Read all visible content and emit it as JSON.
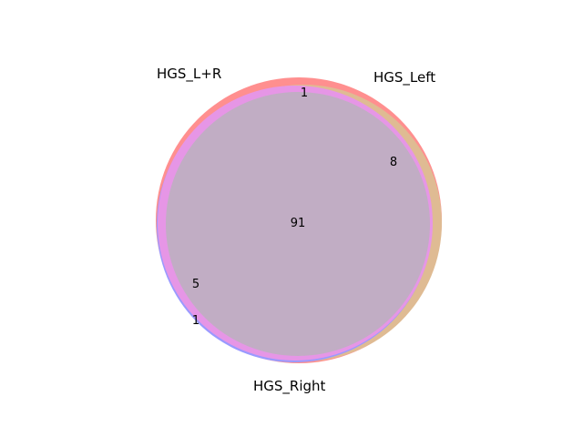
{
  "diagram": {
    "type": "venn3",
    "sets": [
      {
        "name": "HGS_L+R",
        "color": "#ff8f8f"
      },
      {
        "name": "HGS_Left",
        "color": "#dfbb93"
      },
      {
        "name": "HGS_Right",
        "color": "#9a9aff"
      }
    ],
    "regions": [
      {
        "sets": [
          "HGS_L+R",
          "HGS_Left"
        ],
        "count": "1"
      },
      {
        "sets": [
          "HGS_Left"
        ],
        "count": "8"
      },
      {
        "sets": [
          "HGS_L+R",
          "HGS_Left",
          "HGS_Right"
        ],
        "count": "91"
      },
      {
        "sets": [
          "HGS_L+R",
          "HGS_Right"
        ],
        "count": "5"
      },
      {
        "sets": [
          "HGS_Right"
        ],
        "count": "1"
      }
    ],
    "overlap_colors": {
      "lr_right": "#e696e6",
      "all_three": "#c1adc4"
    }
  }
}
